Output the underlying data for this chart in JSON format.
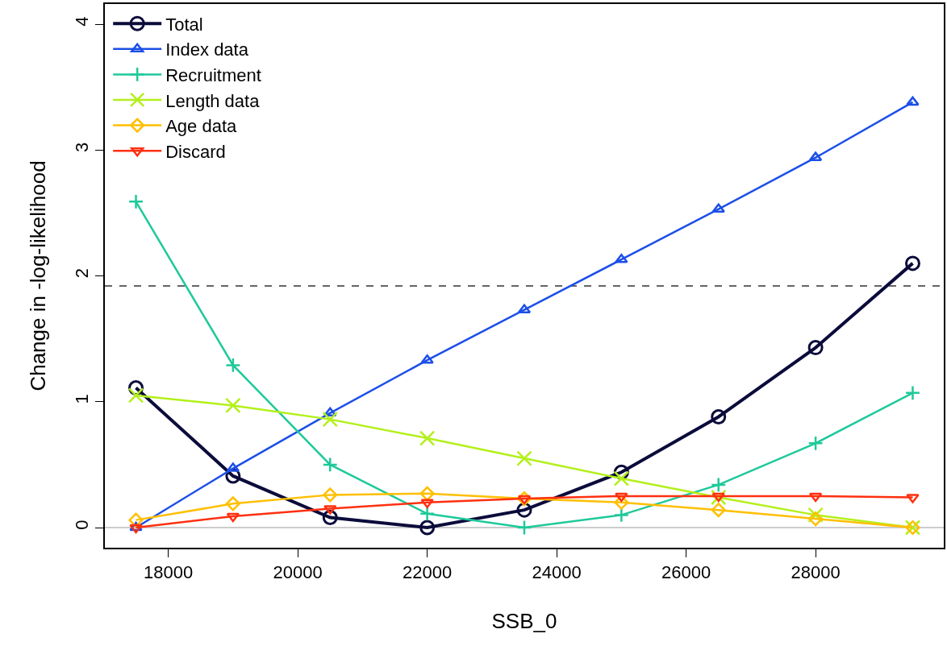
{
  "chart_data": {
    "type": "line",
    "xlabel": "SSB_0",
    "ylabel": "Change in -log-likelihood",
    "x": [
      17500,
      19000,
      20500,
      22000,
      23500,
      25000,
      26500,
      28000,
      29500
    ],
    "xlim": [
      17020,
      29980
    ],
    "xticks": [
      18000,
      20000,
      22000,
      24000,
      26000,
      28000
    ],
    "ylim": [
      -0.16,
      4.16
    ],
    "yticks": [
      0,
      1,
      2,
      3,
      4
    ],
    "legend": "top left",
    "grid": false,
    "series": [
      {
        "name": "Total",
        "color": "#0b0b3b",
        "marker": "circle",
        "values": [
          1.11,
          0.41,
          0.08,
          0,
          0.14,
          0.44,
          0.88,
          1.43,
          2.1
        ]
      },
      {
        "name": "Index data",
        "color": "#1c4fe8",
        "marker": "triangle",
        "values": [
          0,
          0.47,
          0.91,
          1.33,
          1.73,
          2.13,
          2.53,
          2.94,
          3.38
        ]
      },
      {
        "name": "Recruitment",
        "color": "#1fc99a",
        "marker": "plus",
        "values": [
          2.59,
          1.29,
          0.5,
          0.11,
          0,
          0.1,
          0.34,
          0.67,
          1.07
        ]
      },
      {
        "name": "Length data",
        "color": "#b3f01a",
        "marker": "cross",
        "values": [
          1.05,
          0.97,
          0.86,
          0.71,
          0.55,
          0.39,
          0.24,
          0.1,
          0
        ]
      },
      {
        "name": "Age data",
        "color": "#ffbf00",
        "marker": "diamond",
        "values": [
          0.06,
          0.19,
          0.26,
          0.27,
          0.23,
          0.2,
          0.14,
          0.07,
          0
        ]
      },
      {
        "name": "Discard",
        "color": "#ff3010",
        "marker": "triangle-down",
        "values": [
          0,
          0.09,
          0.15,
          0.2,
          0.23,
          0.25,
          0.25,
          0.25,
          0.24
        ]
      }
    ],
    "ref_lines": [
      {
        "axis": "y",
        "value": 1.92,
        "color": "#333333",
        "line_style": "dashed"
      },
      {
        "axis": "y",
        "value": 0,
        "color": "#bbbbbb",
        "line_style": "solid"
      }
    ]
  }
}
